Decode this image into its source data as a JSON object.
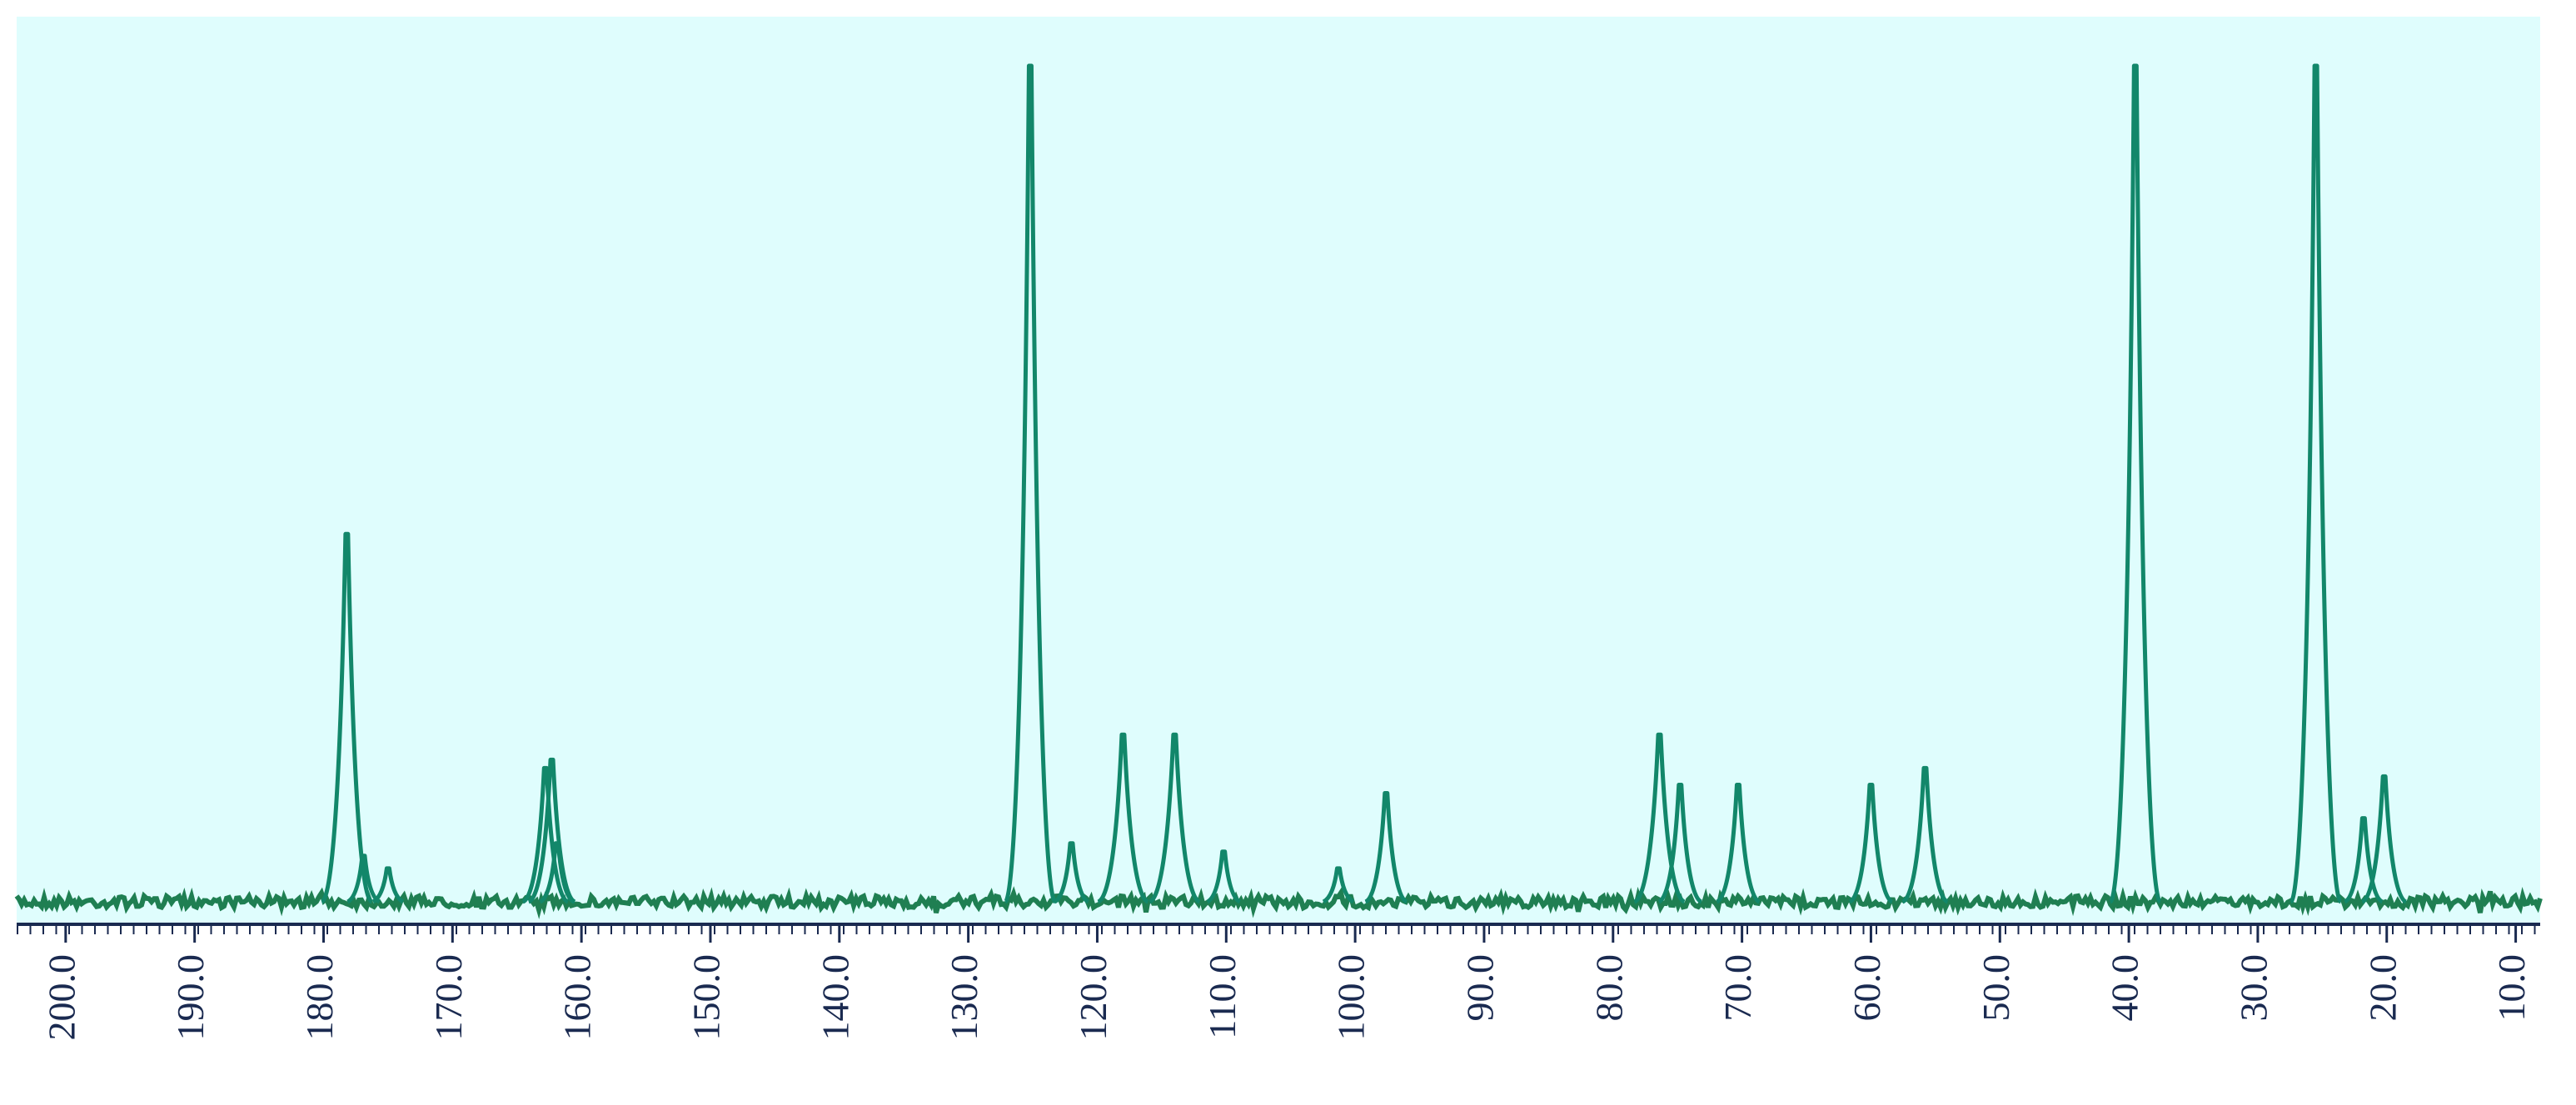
{
  "chart_data": {
    "type": "spectrum",
    "x": [
      178.2,
      176.9,
      175.0,
      162.8,
      162.3,
      161.9,
      125.2,
      122.0,
      118.0,
      114.0,
      110.2,
      101.3,
      97.6,
      76.4,
      74.8,
      70.3,
      60.0,
      55.8,
      39.5,
      25.5,
      21.8,
      20.2
    ],
    "values": [
      44,
      5.5,
      4,
      16,
      17,
      7,
      100,
      7,
      20,
      20,
      6,
      4,
      13,
      20,
      14,
      14,
      14,
      16,
      100,
      100,
      10,
      15
    ],
    "color": "#12876a",
    "xlim": [
      203.8,
      8.1
    ],
    "xticks": [
      {
        "value": 200,
        "label": "200.0"
      },
      {
        "value": 190,
        "label": "190.0"
      },
      {
        "value": 180,
        "label": "180.0"
      },
      {
        "value": 170,
        "label": "170.0"
      },
      {
        "value": 160,
        "label": "160.0"
      },
      {
        "value": 150,
        "label": "150.0"
      },
      {
        "value": 140,
        "label": "140.0"
      },
      {
        "value": 130,
        "label": "130.0"
      },
      {
        "value": 120,
        "label": "120.0"
      },
      {
        "value": 110,
        "label": "110.0"
      },
      {
        "value": 100,
        "label": "100.0"
      },
      {
        "value": 90,
        "label": "90.0"
      },
      {
        "value": 80,
        "label": "80.0"
      },
      {
        "value": 70,
        "label": "70.0"
      },
      {
        "value": 60,
        "label": "60.0"
      },
      {
        "value": 50,
        "label": "50.0"
      },
      {
        "value": 40,
        "label": "40.0"
      },
      {
        "value": 30,
        "label": "30.0"
      },
      {
        "value": 20,
        "label": "20.0"
      },
      {
        "value": 10,
        "label": "10.0"
      }
    ]
  }
}
